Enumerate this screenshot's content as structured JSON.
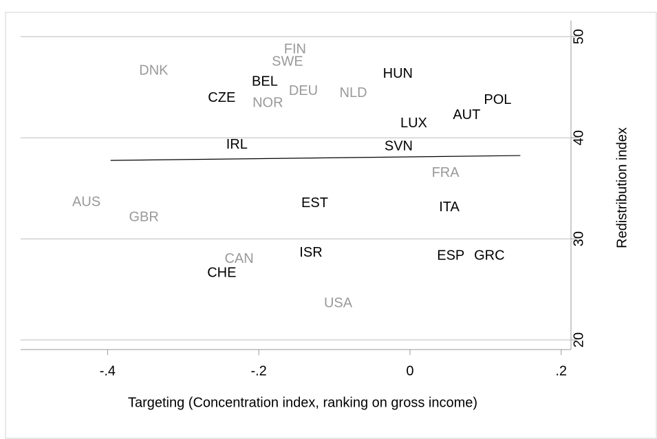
{
  "chart_data": {
    "type": "scatter",
    "x_label": "Targeting (Concentration index, ranking on gross income)",
    "y_label": "Redistribution index",
    "labels": [
      "DNK",
      "FIN",
      "SWE",
      "BEL",
      "HUN",
      "DEU",
      "NLD",
      "CZE",
      "NOR",
      "POL",
      "AUT",
      "LUX",
      "IRL",
      "SVN",
      "FRA",
      "AUS",
      "GBR",
      "EST",
      "ITA",
      "CAN",
      "ISR",
      "ESP",
      "GRC",
      "CHE",
      "USA"
    ],
    "x": [
      -0.339,
      -0.152,
      -0.162,
      -0.192,
      -0.016,
      -0.141,
      -0.075,
      -0.249,
      -0.188,
      0.116,
      0.075,
      0.005,
      -0.229,
      -0.015,
      0.047,
      -0.428,
      -0.352,
      -0.126,
      0.052,
      -0.226,
      -0.131,
      0.054,
      0.105,
      -0.249,
      -0.095
    ],
    "y": [
      46.6,
      48.7,
      47.5,
      45.5,
      46.3,
      44.6,
      44.4,
      43.9,
      43.4,
      43.7,
      42.2,
      41.4,
      39.3,
      39.1,
      36.5,
      33.6,
      32.1,
      33.5,
      33.1,
      28.0,
      28.6,
      28.3,
      28.3,
      26.6,
      23.6
    ],
    "colors": [
      "#999999",
      "#999999",
      "#999999",
      "#000000",
      "#000000",
      "#999999",
      "#999999",
      "#000000",
      "#999999",
      "#000000",
      "#000000",
      "#000000",
      "#000000",
      "#000000",
      "#999999",
      "#999999",
      "#999999",
      "#000000",
      "#000000",
      "#999999",
      "#000000",
      "#000000",
      "#000000",
      "#000000",
      "#999999"
    ],
    "fit_line": {
      "x": [
        -0.396,
        0.146
      ],
      "y": [
        37.76,
        38.24
      ],
      "color": "#000000"
    },
    "xlim": [
      -0.515,
      0.213
    ],
    "ylim": [
      19.05,
      52.4
    ],
    "xticks": [
      {
        "value": -0.4,
        "label": "-.4"
      },
      {
        "value": -0.2,
        "label": "-.2"
      },
      0,
      {
        "value": 0.2,
        "label": ".2"
      }
    ],
    "yticks": [
      20,
      30,
      40,
      50
    ],
    "y_axis_side": "right",
    "grid": true
  }
}
